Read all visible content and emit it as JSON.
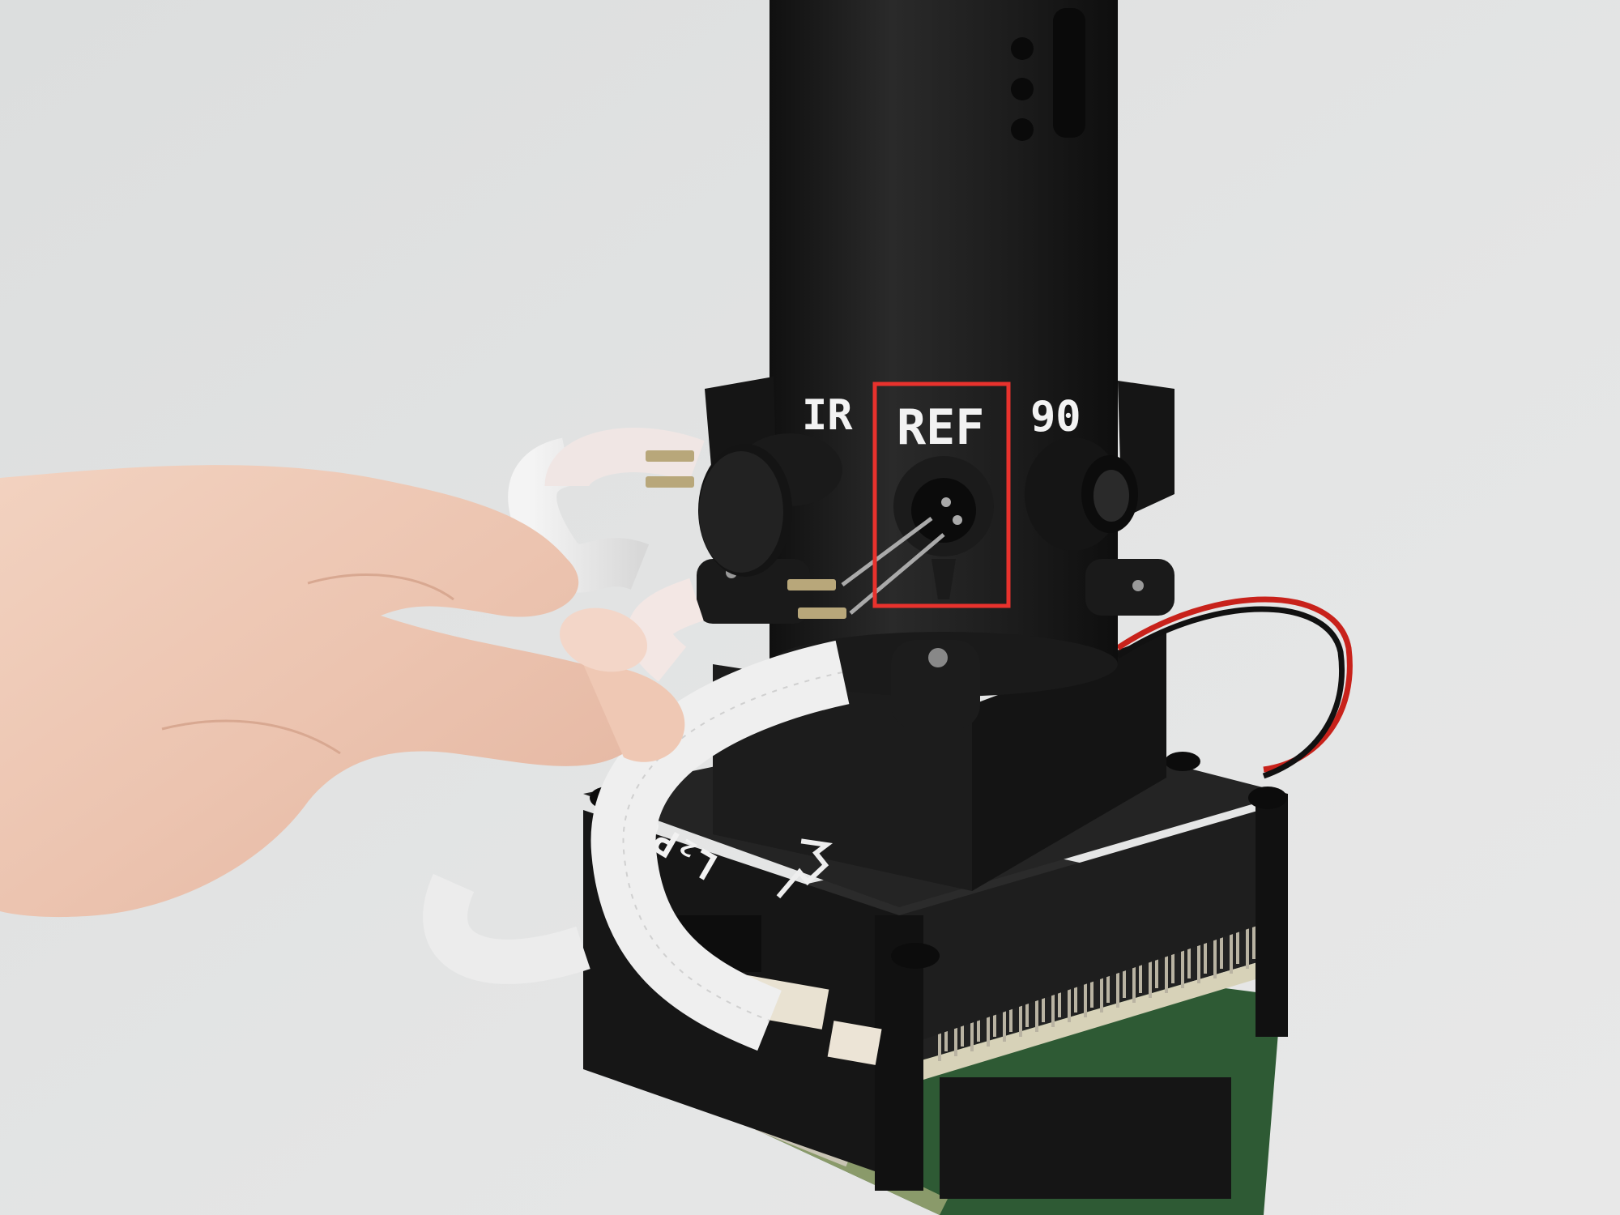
{
  "photo": {
    "labels": {
      "ir": "IR",
      "ref": "REF",
      "deg": "90",
      "lpo": "L₂Pd"
    },
    "highlight_color": "#e8322d",
    "background_color": "#e2e3e3",
    "device_color": "#1b1b1b",
    "pcb_color": "#2e5a34",
    "highlight_target": "ref-port"
  }
}
